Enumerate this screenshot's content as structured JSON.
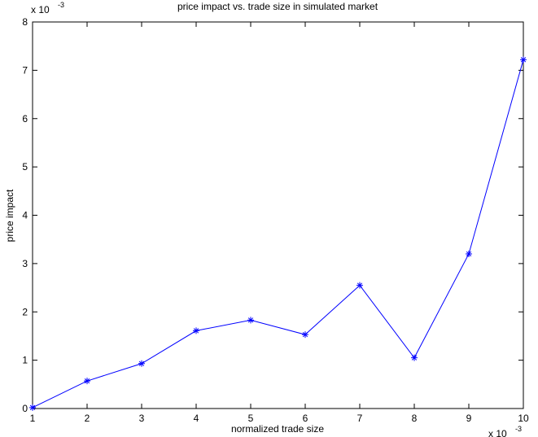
{
  "chart_data": {
    "type": "line",
    "title": "price impact vs. trade size in simulated market",
    "x_label": "normalized trade size",
    "y_label": "price impact",
    "x_multiplier": {
      "base": "x 10",
      "exponent": "-3"
    },
    "y_multiplier": {
      "base": "x 10",
      "exponent": "-3"
    },
    "x": [
      1,
      2,
      3,
      4,
      5,
      6,
      7,
      8,
      9,
      10
    ],
    "series": [
      {
        "name": "price impact",
        "color": "#0000ff",
        "values": [
          0.02,
          0.57,
          0.93,
          1.61,
          1.83,
          1.53,
          2.55,
          1.05,
          3.2,
          7.22
        ]
      }
    ],
    "xlim": [
      1,
      10
    ],
    "ylim": [
      0,
      8
    ],
    "xticks": [
      1,
      2,
      3,
      4,
      5,
      6,
      7,
      8,
      9,
      10
    ],
    "yticks": [
      0,
      1,
      2,
      3,
      4,
      5,
      6,
      7,
      8
    ],
    "marker": "*",
    "grid": false
  }
}
